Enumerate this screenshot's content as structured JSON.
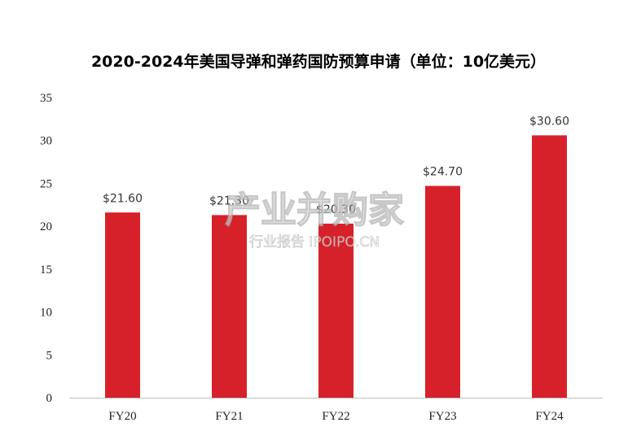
{
  "chart_data": {
    "type": "bar",
    "title": "2020-2024年美国导弹和弹药国防预算申请（单位：10亿美元）",
    "categories": [
      "FY20",
      "FY21",
      "FY22",
      "FY23",
      "FY24"
    ],
    "values": [
      21.6,
      21.3,
      20.3,
      24.7,
      30.6
    ],
    "data_labels": [
      "$21.60",
      "$21.30",
      "$20.30",
      "$24.70",
      "$30.60"
    ],
    "ylim": [
      0,
      35
    ],
    "yticks": [
      0,
      5,
      10,
      15,
      20,
      25,
      30,
      35
    ],
    "grid": false,
    "legend": "none",
    "bar_color": "#d6212a",
    "axis_color": "#bfbfbf"
  },
  "watermark": {
    "main": "产业并购家",
    "sub": "行业报告 IPOIPO.CN"
  }
}
